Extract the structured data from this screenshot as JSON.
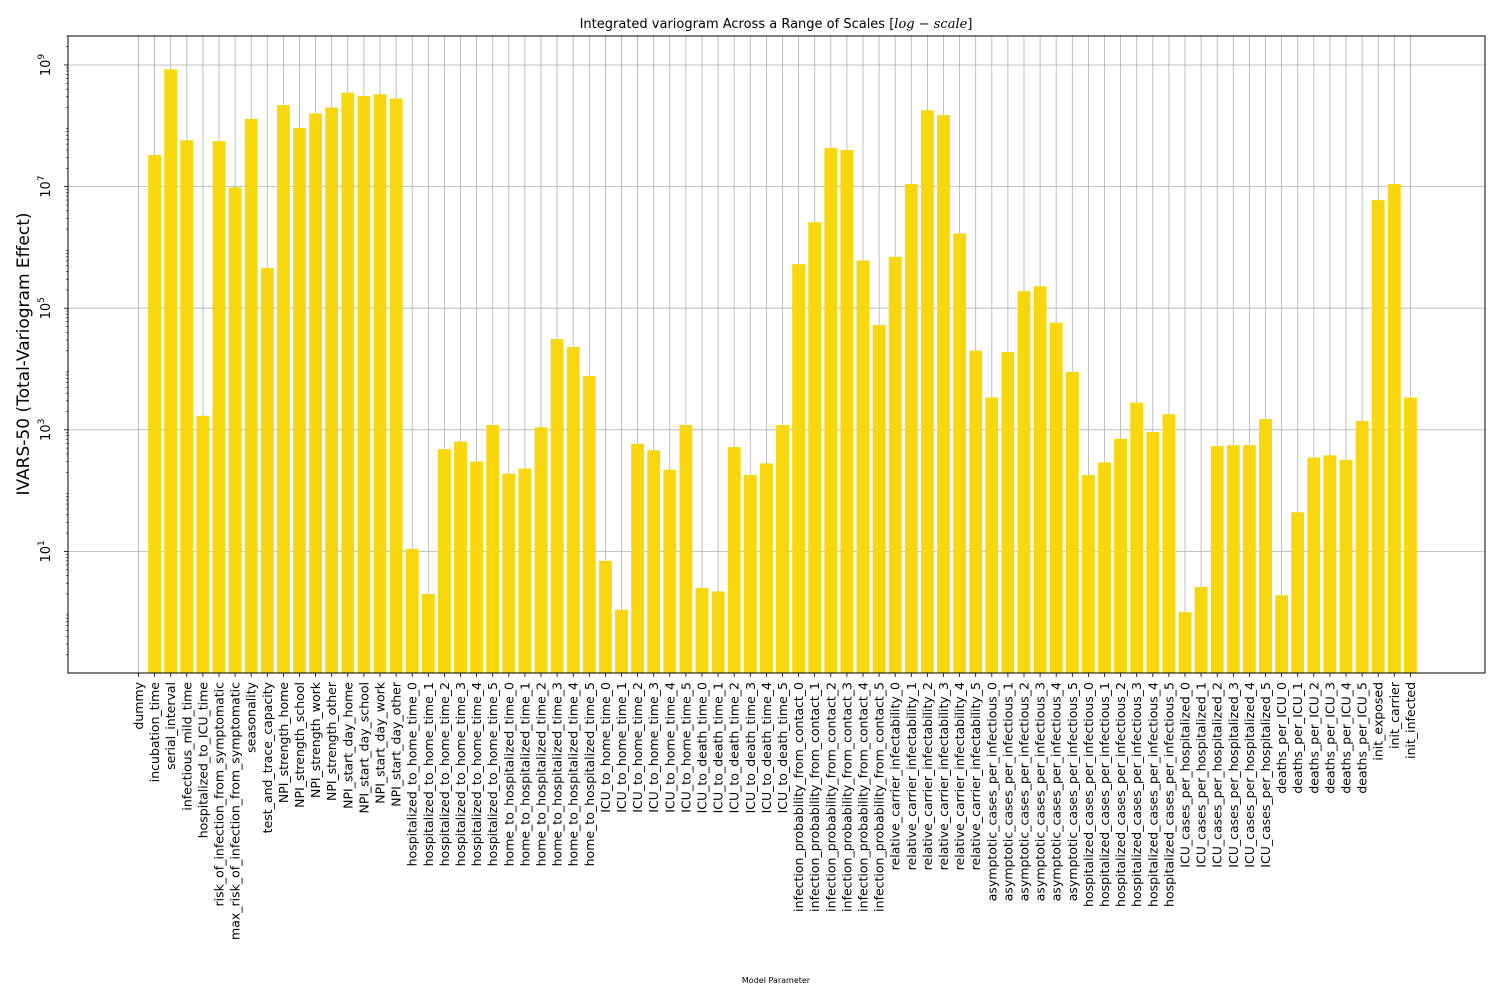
{
  "chart_data": {
    "type": "bar",
    "title": "Integrated variogram Across a Range of Scales [",
    "title_math": "log − scale",
    "title_end": "]",
    "xlabel": "Model Parameter",
    "ylabel": "IVARS-50 (Total-Variogram Effect)",
    "yscale": "log",
    "ylim": [
      0.1,
      3000000000
    ],
    "ytick_labels": [
      {
        "base": "10",
        "exp": "1",
        "value": 10
      },
      {
        "base": "10",
        "exp": "3",
        "value": 1000
      },
      {
        "base": "10",
        "exp": "5",
        "value": 100000
      },
      {
        "base": "10",
        "exp": "7",
        "value": 10000000
      },
      {
        "base": "10",
        "exp": "9",
        "value": 1000000000
      }
    ],
    "grid": true,
    "bar_color": "#f8d70f",
    "categories": [
      "dummy",
      "incubation_time",
      "serial_interval",
      "infectious_mild_time",
      "hospitalized_to_ICU_time",
      "risk_of_infection_from_symptomatic",
      "max_risk_of_infection_from_symptomatic",
      "seasonality",
      "test_and_trace_capacity",
      "NPI_strength_home",
      "NPI_strength_school",
      "NPI_strength_work",
      "NPI_strength_other",
      "NPI_start_day_home",
      "NPI_start_day_school",
      "NPI_start_day_work",
      "NPI_start_day_other",
      "hospitalized_to_home_time_0",
      "hospitalized_to_home_time_1",
      "hospitalized_to_home_time_2",
      "hospitalized_to_home_time_3",
      "hospitalized_to_home_time_4",
      "hospitalized_to_home_time_5",
      "home_to_hospitalized_time_0",
      "home_to_hospitalized_time_1",
      "home_to_hospitalized_time_2",
      "home_to_hospitalized_time_3",
      "home_to_hospitalized_time_4",
      "home_to_hospitalized_time_5",
      "ICU_to_home_time_0",
      "ICU_to_home_time_1",
      "ICU_to_home_time_2",
      "ICU_to_home_time_3",
      "ICU_to_home_time_4",
      "ICU_to_home_time_5",
      "ICU_to_death_time_0",
      "ICU_to_death_time_1",
      "ICU_to_death_time_2",
      "ICU_to_death_time_3",
      "ICU_to_death_time_4",
      "ICU_to_death_time_5",
      "infection_probability_from_contact_0",
      "infection_probability_from_contact_1",
      "infection_probability_from_contact_2",
      "infection_probability_from_contact_3",
      "infection_probability_from_contact_4",
      "infection_probability_from_contact_5",
      "relative_carrier_infectability_0",
      "relative_carrier_infectability_1",
      "relative_carrier_infectability_2",
      "relative_carrier_infectability_3",
      "relative_carrier_infectability_4",
      "relative_carrier_infectability_5",
      "asymptotic_cases_per_infectious_0",
      "asymptotic_cases_per_infectious_1",
      "asymptotic_cases_per_infectious_2",
      "asymptotic_cases_per_infectious_3",
      "asymptotic_cases_per_infectious_4",
      "asymptotic_cases_per_infectious_5",
      "hospitalized_cases_per_infectious_0",
      "hospitalized_cases_per_infectious_1",
      "hospitalized_cases_per_infectious_2",
      "hospitalized_cases_per_infectious_3",
      "hospitalized_cases_per_infectious_4",
      "hospitalized_cases_per_infectious_5",
      "ICU_cases_per_hospitalized_0",
      "ICU_cases_per_hospitalized_1",
      "ICU_cases_per_hospitalized_2",
      "ICU_cases_per_hospitalized_3",
      "ICU_cases_per_hospitalized_4",
      "ICU_cases_per_hospitalized_5",
      "deaths_per_ICU_0",
      "deaths_per_ICU_1",
      "deaths_per_ICU_2",
      "deaths_per_ICU_3",
      "deaths_per_ICU_4",
      "deaths_per_ICU_5",
      "init_exposed",
      "init_carrier",
      "init_infected"
    ],
    "values": [
      0,
      33000000,
      850000000,
      58000000,
      1700,
      56000000,
      9700000,
      130000000,
      460000,
      220000000,
      92000000,
      160000000,
      200000000,
      350000000,
      310000000,
      330000000,
      280000000,
      11,
      2,
      480,
      640,
      300,
      1200,
      190,
      230,
      1100,
      31000,
      23000,
      7700,
      7,
      1.1,
      590,
      460,
      220,
      1200,
      2.5,
      2.2,
      520,
      180,
      280,
      1200,
      530000,
      2600000,
      43000000,
      40000000,
      610000,
      53000,
      700000,
      11000000,
      180000000,
      150000000,
      1700000,
      20000,
      3400,
      19000,
      190000,
      230000,
      58000,
      9000,
      180,
      290,
      710,
      2800,
      920,
      1800,
      1,
      2.6,
      540,
      560,
      560,
      1500,
      1.9,
      44,
      350,
      380,
      320,
      1400,
      6000000,
      11000000,
      3400
    ]
  }
}
